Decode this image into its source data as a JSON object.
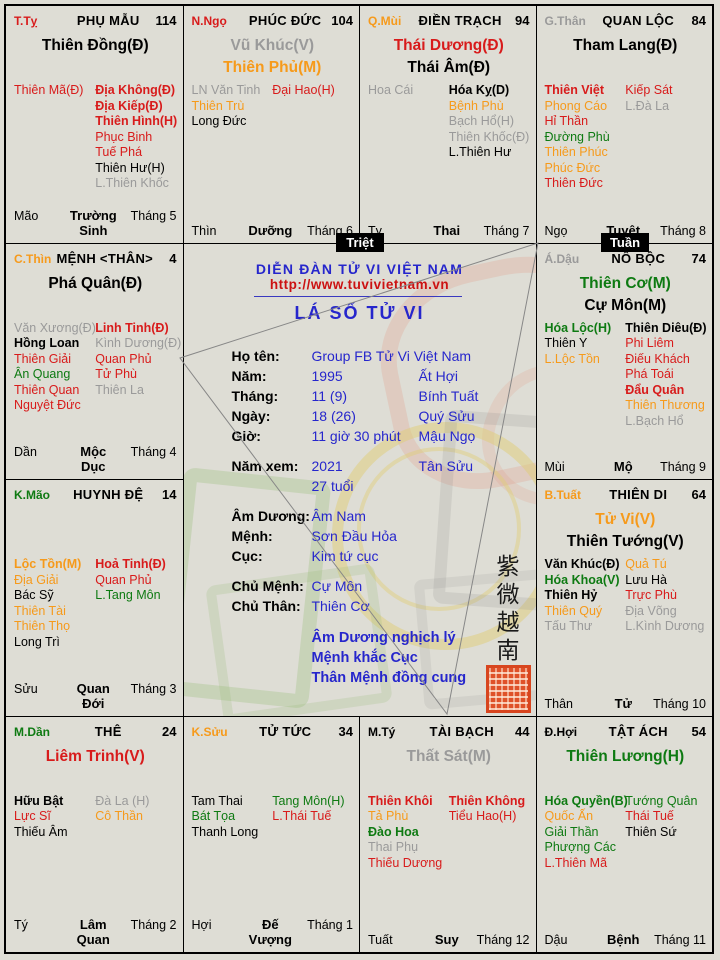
{
  "colors": {
    "red": "#d81b1b",
    "orange": "#f69a1b",
    "green": "#0e7a12",
    "gray": "#9a9a9a",
    "black": "#000000",
    "blue": "#2626cc",
    "urlred": "#cc1111",
    "bg": "#deddd5"
  },
  "badges": {
    "triet": "Triệt",
    "tuan": "Tuần"
  },
  "center": {
    "site_title": "DIỄN ĐÀN TỬ VI VIỆT NAM",
    "site_url": "http://www.tuvivietnam.vn",
    "chart_title": "LÁ SỐ TỬ VI",
    "info_rows": [
      {
        "label": "Họ tên:",
        "value": "Group FB Tử Vi Việt Nam",
        "extra": ""
      },
      {
        "label": "Năm:",
        "value": "1995",
        "extra": "Ất Hợi"
      },
      {
        "label": "Tháng:",
        "value": "11 (9)",
        "extra": "Bính Tuất"
      },
      {
        "label": "Ngày:",
        "value": "18 (26)",
        "extra": "Quý Sửu"
      },
      {
        "label": "Giờ:",
        "value": "11 giờ 30 phút",
        "extra": "Mậu Ngọ"
      },
      {
        "label": "Năm xem:",
        "value": "2021",
        "extra": "Tân Sửu",
        "gap": true
      },
      {
        "label": "",
        "value": "27 tuổi",
        "extra": ""
      },
      {
        "label": "Âm Dương:",
        "value": "Âm Nam",
        "extra": "",
        "gap": true
      },
      {
        "label": "Mệnh:",
        "value": "Sơn Đầu Hỏa",
        "extra": ""
      },
      {
        "label": "Cục:",
        "value": "Kim tứ cục",
        "extra": ""
      },
      {
        "label": "Chủ Mệnh:",
        "value": "Cự Môn",
        "extra": "",
        "gap": true
      },
      {
        "label": "Chủ Thân:",
        "value": "Thiên Cơ",
        "extra": ""
      }
    ],
    "notes": [
      "Âm Dương nghịch lý",
      "Mệnh khắc Cục",
      "Thân Mệnh đồng cung"
    ],
    "seal_text": "紫微越南"
  },
  "palaces": [
    {
      "key": "phu-mau",
      "pos": "r1c1",
      "corner": {
        "t": "T.Tỵ",
        "c": "red"
      },
      "title": "PHỤ MẪU",
      "num": "114",
      "main": [
        {
          "t": "Thiên Đồng(Đ)",
          "c": "black"
        }
      ],
      "left": [
        {
          "t": "Thiên Mã(Đ)",
          "c": "red"
        }
      ],
      "right": [
        {
          "t": "Địa Không(Đ)",
          "c": "red",
          "b": 1
        },
        {
          "t": "Địa Kiếp(Đ)",
          "c": "red",
          "b": 1
        },
        {
          "t": "Thiên Hình(H)",
          "c": "red",
          "b": 1
        },
        {
          "t": "Phục Binh",
          "c": "red"
        },
        {
          "t": "Tuế Phá",
          "c": "red"
        },
        {
          "t": "Thiên Hư(H)",
          "c": "black"
        },
        {
          "t": "L.Thiên Khốc",
          "c": "gray"
        }
      ],
      "branch": "Mão",
      "stage": "Trường Sinh",
      "month": "Tháng 5"
    },
    {
      "key": "phuc-duc",
      "pos": "r1c2",
      "corner": {
        "t": "N.Ngọ",
        "c": "red"
      },
      "title": "PHÚC ĐỨC",
      "num": "104",
      "main": [
        {
          "t": "Vũ Khúc(V)",
          "c": "gray"
        },
        {
          "t": "Thiên Phủ(M)",
          "c": "orange"
        }
      ],
      "left": [
        {
          "t": "LN Văn Tinh",
          "c": "gray"
        },
        {
          "t": "Thiên Trù",
          "c": "orange"
        },
        {
          "t": "Long Đức",
          "c": "black"
        }
      ],
      "right": [
        {
          "t": "Đại Hao(H)",
          "c": "red"
        }
      ],
      "branch": "Thìn",
      "stage": "Dưỡng",
      "month": "Tháng 6"
    },
    {
      "key": "dien-trach",
      "pos": "r1c3",
      "corner": {
        "t": "Q.Mùi",
        "c": "orange"
      },
      "title": "ĐIỀN TRẠCH",
      "num": "94",
      "main": [
        {
          "t": "Thái Dương(Đ)",
          "c": "red"
        },
        {
          "t": "Thái Âm(Đ)",
          "c": "black"
        }
      ],
      "left": [
        {
          "t": "Hoa Cái",
          "c": "gray"
        }
      ],
      "right": [
        {
          "t": "Hóa Kỵ(D)",
          "c": "black",
          "b": 1
        },
        {
          "t": "Bệnh Phù",
          "c": "orange"
        },
        {
          "t": "Bạch Hổ(H)",
          "c": "gray"
        },
        {
          "t": "Thiên Khốc(Đ)",
          "c": "gray"
        },
        {
          "t": "L.Thiên Hư",
          "c": "black"
        }
      ],
      "branch": "Tỵ",
      "stage": "Thai",
      "month": "Tháng 7"
    },
    {
      "key": "quan-loc",
      "pos": "r1c4",
      "corner": {
        "t": "G.Thân",
        "c": "gray"
      },
      "title": "QUAN LỘC",
      "num": "84",
      "main": [
        {
          "t": "Tham Lang(Đ)",
          "c": "black"
        }
      ],
      "left": [
        {
          "t": "Thiên Việt",
          "c": "red",
          "b": 1
        },
        {
          "t": "Phong Cáo",
          "c": "orange"
        },
        {
          "t": "Hỉ Thần",
          "c": "red"
        },
        {
          "t": "Đường Phù",
          "c": "green"
        },
        {
          "t": "Thiên Phúc",
          "c": "orange"
        },
        {
          "t": "Phúc Đức",
          "c": "orange"
        },
        {
          "t": "Thiên Đức",
          "c": "red"
        }
      ],
      "right": [
        {
          "t": "Kiếp Sát",
          "c": "red"
        },
        {
          "t": "L.Đà La",
          "c": "gray"
        }
      ],
      "branch": "Ngọ",
      "stage": "Tuyệt",
      "month": "Tháng 8"
    },
    {
      "key": "menh-than",
      "pos": "r2c1",
      "corner": {
        "t": "C.Thìn",
        "c": "orange"
      },
      "title": "MỆNH <THÂN>",
      "num": "4",
      "main": [
        {
          "t": "Phá Quân(Đ)",
          "c": "black"
        }
      ],
      "left": [
        {
          "t": "Văn Xương(Đ)",
          "c": "gray"
        },
        {
          "t": "Hồng Loan",
          "c": "black",
          "b": 1
        },
        {
          "t": "Thiên Giải",
          "c": "red"
        },
        {
          "t": "Ân Quang",
          "c": "green"
        },
        {
          "t": "Thiên Quan",
          "c": "red"
        },
        {
          "t": "Nguyệt Đức",
          "c": "red"
        }
      ],
      "right": [
        {
          "t": "Linh Tinh(Đ)",
          "c": "red",
          "b": 1
        },
        {
          "t": "Kình Dương(Đ)",
          "c": "gray"
        },
        {
          "t": "Quan Phủ",
          "c": "red"
        },
        {
          "t": "Tử Phù",
          "c": "red"
        },
        {
          "t": "Thiên La",
          "c": "gray"
        }
      ],
      "branch": "Dần",
      "stage": "Mộc Dục",
      "month": "Tháng 4"
    },
    {
      "key": "no-boc",
      "pos": "r2c4",
      "corner": {
        "t": "Á.Dậu",
        "c": "gray"
      },
      "title": "NÔ BỘC",
      "num": "74",
      "main": [
        {
          "t": "Thiên Cơ(M)",
          "c": "green"
        },
        {
          "t": "Cự Môn(M)",
          "c": "black"
        }
      ],
      "left": [
        {
          "t": "Hóa Lộc(H)",
          "c": "green",
          "b": 1
        },
        {
          "t": "Thiên Y",
          "c": "black"
        },
        {
          "t": "L.Lộc Tồn",
          "c": "orange"
        }
      ],
      "right": [
        {
          "t": "Thiên Diêu(Đ)",
          "c": "black",
          "b": 1
        },
        {
          "t": "Phi Liêm",
          "c": "red"
        },
        {
          "t": "Điếu Khách",
          "c": "red"
        },
        {
          "t": "Phá Toái",
          "c": "red"
        },
        {
          "t": "Đẩu Quân",
          "c": "red",
          "b": 1
        },
        {
          "t": "Thiên Thương",
          "c": "orange"
        },
        {
          "t": "L.Bạch Hổ",
          "c": "gray"
        }
      ],
      "branch": "Mùi",
      "stage": "Mộ",
      "month": "Tháng 9"
    },
    {
      "key": "huynh-de",
      "pos": "r3c1",
      "corner": {
        "t": "K.Mão",
        "c": "green"
      },
      "title": "HUYNH ĐỆ",
      "num": "14",
      "main": [],
      "left": [
        {
          "t": "Lộc Tồn(M)",
          "c": "orange",
          "b": 1
        },
        {
          "t": "Địa Giải",
          "c": "orange"
        },
        {
          "t": "Bác Sỹ",
          "c": "black"
        },
        {
          "t": "Thiên Tài",
          "c": "orange"
        },
        {
          "t": "Thiên Thọ",
          "c": "orange"
        },
        {
          "t": "Long Trì",
          "c": "black"
        }
      ],
      "right": [
        {
          "t": "Hoả Tinh(Đ)",
          "c": "red",
          "b": 1
        },
        {
          "t": "Quan Phủ",
          "c": "red"
        },
        {
          "t": "L.Tang Môn",
          "c": "green"
        }
      ],
      "branch": "Sửu",
      "stage": "Quan Đới",
      "month": "Tháng 3"
    },
    {
      "key": "thien-di",
      "pos": "r3c4",
      "corner": {
        "t": "B.Tuất",
        "c": "orange"
      },
      "title": "THIÊN DI",
      "num": "64",
      "main": [
        {
          "t": "Tử Vi(V)",
          "c": "orange"
        },
        {
          "t": "Thiên Tướng(V)",
          "c": "black"
        }
      ],
      "left": [
        {
          "t": "Văn Khúc(Đ)",
          "c": "black",
          "b": 1
        },
        {
          "t": "Hóa Khoa(V)",
          "c": "green",
          "b": 1
        },
        {
          "t": "Thiên Hỷ",
          "c": "black",
          "b": 1
        },
        {
          "t": "Thiên Quý",
          "c": "orange"
        },
        {
          "t": "Tấu Thư",
          "c": "gray"
        }
      ],
      "right": [
        {
          "t": "Quả Tú",
          "c": "orange"
        },
        {
          "t": "Lưu Hà",
          "c": "black"
        },
        {
          "t": "Trực Phù",
          "c": "red"
        },
        {
          "t": "Địa Võng",
          "c": "gray"
        },
        {
          "t": "L.Kình Dương",
          "c": "gray"
        }
      ],
      "branch": "Thân",
      "stage": "Tử",
      "month": "Tháng 10"
    },
    {
      "key": "the",
      "pos": "r4c1",
      "corner": {
        "t": "M.Dần",
        "c": "green"
      },
      "title": "THÊ",
      "num": "24",
      "main": [
        {
          "t": "Liêm Trinh(V)",
          "c": "red"
        }
      ],
      "left": [
        {
          "t": "Hữu Bật",
          "c": "black",
          "b": 1
        },
        {
          "t": "Lực Sĩ",
          "c": "red"
        },
        {
          "t": "Thiếu Âm",
          "c": "black"
        }
      ],
      "right": [
        {
          "t": "Đà La (H)",
          "c": "gray"
        },
        {
          "t": "Cô Thần",
          "c": "orange"
        }
      ],
      "branch": "Tý",
      "stage": "Lâm Quan",
      "month": "Tháng 2"
    },
    {
      "key": "tu-tuc",
      "pos": "r4c2",
      "corner": {
        "t": "K.Sửu",
        "c": "orange"
      },
      "title": "TỬ TỨC",
      "num": "34",
      "main": [],
      "left": [
        {
          "t": "Tam Thai",
          "c": "black"
        },
        {
          "t": "Bát Tọa",
          "c": "green"
        },
        {
          "t": "Thanh Long",
          "c": "black"
        }
      ],
      "right": [
        {
          "t": "Tang Môn(H)",
          "c": "green"
        },
        {
          "t": "L.Thái Tuế",
          "c": "red"
        }
      ],
      "branch": "Hợi",
      "stage": "Đế Vượng",
      "month": "Tháng 1"
    },
    {
      "key": "tai-bach",
      "pos": "r4c3",
      "corner": {
        "t": "M.Tý",
        "c": "black"
      },
      "title": "TÀI BẠCH",
      "num": "44",
      "main": [
        {
          "t": "Thất Sát(M)",
          "c": "gray"
        }
      ],
      "left": [
        {
          "t": "Thiên Khôi",
          "c": "red",
          "b": 1
        },
        {
          "t": "Tả Phù",
          "c": "orange"
        },
        {
          "t": "Đào Hoa",
          "c": "green",
          "b": 1
        },
        {
          "t": "Thai Phụ",
          "c": "gray"
        },
        {
          "t": "Thiếu Dương",
          "c": "red"
        }
      ],
      "right": [
        {
          "t": "Thiên Không",
          "c": "red",
          "b": 1
        },
        {
          "t": "Tiểu Hao(H)",
          "c": "red"
        }
      ],
      "branch": "Tuất",
      "stage": "Suy",
      "month": "Tháng 12"
    },
    {
      "key": "tat-ach",
      "pos": "r4c4",
      "corner": {
        "t": "Đ.Hợi",
        "c": "black"
      },
      "title": "TẬT ÁCH",
      "num": "54",
      "main": [
        {
          "t": "Thiên Lương(H)",
          "c": "green"
        }
      ],
      "left": [
        {
          "t": "Hóa Quyền(B)",
          "c": "green",
          "b": 1
        },
        {
          "t": "Quốc Ấn",
          "c": "orange"
        },
        {
          "t": "Giải Thần",
          "c": "green"
        },
        {
          "t": "Phượng Các",
          "c": "green"
        },
        {
          "t": "L.Thiên Mã",
          "c": "red"
        }
      ],
      "right": [
        {
          "t": "Tướng Quân",
          "c": "green"
        },
        {
          "t": "Thái Tuế",
          "c": "red"
        },
        {
          "t": "Thiên Sứ",
          "c": "black"
        }
      ],
      "branch": "Dậu",
      "stage": "Bệnh",
      "month": "Tháng 11"
    }
  ]
}
